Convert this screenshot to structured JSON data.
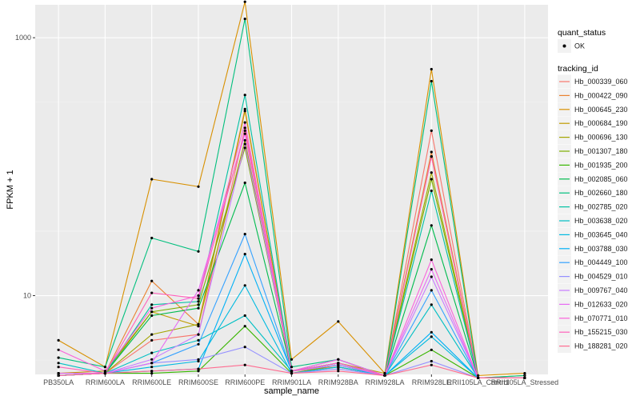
{
  "chart_data": {
    "type": "line",
    "xlabel": "sample_name",
    "ylabel": "FPKM + 1",
    "y_scale": "log10",
    "ylim": [
      2.45,
      1800
    ],
    "y_ticks": [
      10,
      1000
    ],
    "y_tick_labels": [
      "10",
      "1000"
    ],
    "grid": true,
    "legend_position": "right",
    "categories": [
      "PB350LA",
      "RRIM600LA",
      "RRIM600LE",
      "RRIM600SE",
      "RRIM600PE",
      "RRIM901LA",
      "RRIM928BA",
      "RRIM928LA",
      "RRIM928LE",
      "RRII105LA_Control",
      "RRII105LA_Stressed"
    ],
    "marker_legend": {
      "title": "quant_status",
      "entries": [
        "OK"
      ]
    },
    "color_legend_title": "tracking_id",
    "series": [
      {
        "name": "Hb_000339_060",
        "color": "#F8766D",
        "values": [
          2.4,
          2.5,
          4.5,
          5,
          200,
          2.6,
          2.8,
          2.4,
          190,
          2.3,
          2.3
        ]
      },
      {
        "name": "Hb_000422_090",
        "color": "#EA8331",
        "values": [
          2.5,
          2.5,
          13,
          6,
          280,
          2.6,
          3,
          2.4,
          130,
          2.3,
          2.3
        ]
      },
      {
        "name": "Hb_000645_230",
        "color": "#D89000",
        "values": [
          4.5,
          2.8,
          80,
          70,
          1900,
          3.2,
          6.3,
          2.5,
          570,
          2.4,
          2.5
        ]
      },
      {
        "name": "Hb_000684_190",
        "color": "#C09B00",
        "values": [
          2.5,
          2.6,
          7.5,
          5.8,
          270,
          2.6,
          3,
          2.5,
          120,
          2.3,
          2.4
        ]
      },
      {
        "name": "Hb_000696_130",
        "color": "#A3A500",
        "values": [
          2.4,
          2.5,
          5,
          6,
          160,
          2.5,
          2.9,
          2.4,
          90,
          2.3,
          2.3
        ]
      },
      {
        "name": "Hb_001307_180",
        "color": "#7CAE00",
        "values": [
          2.4,
          2.5,
          7.5,
          8.5,
          140,
          2.6,
          3,
          2.4,
          80,
          2.3,
          2.3
        ]
      },
      {
        "name": "Hb_001935_200",
        "color": "#39B600",
        "values": [
          2.4,
          2.5,
          2.5,
          2.6,
          5.8,
          2.5,
          2.8,
          2.4,
          3.8,
          2.3,
          2.3
        ]
      },
      {
        "name": "Hb_002085_060",
        "color": "#00BB4E",
        "values": [
          2.4,
          2.5,
          7,
          8,
          75,
          2.6,
          3,
          2.4,
          35,
          2.3,
          2.3
        ]
      },
      {
        "name": "Hb_002660_180",
        "color": "#00BF7D",
        "values": [
          3.3,
          2.8,
          28,
          22,
          1400,
          2.8,
          3.2,
          2.4,
          460,
          2.3,
          2.4
        ]
      },
      {
        "name": "Hb_002785_020",
        "color": "#00C1A3",
        "values": [
          2.4,
          2.5,
          8.5,
          9,
          360,
          2.6,
          3,
          2.4,
          65,
          2.3,
          2.3
        ]
      },
      {
        "name": "Hb_003638_020",
        "color": "#00BFC4",
        "values": [
          3,
          2.5,
          3.6,
          4.5,
          7,
          2.6,
          2.9,
          2.4,
          8.5,
          2.3,
          2.3
        ]
      },
      {
        "name": "Hb_003645_040",
        "color": "#00BAE0",
        "values": [
          2.5,
          2.5,
          2.8,
          3.1,
          12,
          2.5,
          2.8,
          2.4,
          4.8,
          2.3,
          2.3
        ]
      },
      {
        "name": "Hb_003788_030",
        "color": "#00B0F6",
        "values": [
          2.4,
          2.5,
          2.6,
          2.7,
          21,
          2.6,
          2.9,
          2.4,
          5.2,
          2.3,
          2.3
        ]
      },
      {
        "name": "Hb_004449_100",
        "color": "#35A2FF",
        "values": [
          2.4,
          2.5,
          3,
          4.2,
          30,
          2.6,
          3.2,
          2.4,
          11,
          2.3,
          2.3
        ]
      },
      {
        "name": "Hb_004529_010",
        "color": "#9590FF",
        "values": [
          2.4,
          2.5,
          3,
          3.2,
          4,
          2.5,
          2.7,
          2.4,
          3.1,
          2.3,
          2.3
        ]
      },
      {
        "name": "Hb_009767_040",
        "color": "#C77CFF",
        "values": [
          2.4,
          2.5,
          3.2,
          5,
          150,
          2.6,
          2.9,
          2.4,
          14,
          2.3,
          2.3
        ]
      },
      {
        "name": "Hb_012633_020",
        "color": "#E76BF3",
        "values": [
          2.5,
          2.5,
          3,
          11,
          180,
          2.6,
          3,
          2.4,
          16,
          2.3,
          2.3
        ]
      },
      {
        "name": "Hb_070771_010",
        "color": "#FA62DB",
        "values": [
          3.8,
          2.6,
          8,
          10,
          220,
          2.6,
          3.2,
          2.4,
          19,
          2.3,
          2.3
        ]
      },
      {
        "name": "Hb_155215_030",
        "color": "#FF62BC",
        "values": [
          2.8,
          2.5,
          10.5,
          9.5,
          190,
          2.6,
          3,
          2.4,
          120,
          2.3,
          2.3
        ]
      },
      {
        "name": "Hb_188281_020",
        "color": "#FF6C91",
        "values": [
          2.4,
          2.5,
          2.6,
          2.7,
          2.9,
          2.5,
          2.6,
          2.4,
          2.9,
          2.3,
          2.3
        ]
      }
    ]
  }
}
